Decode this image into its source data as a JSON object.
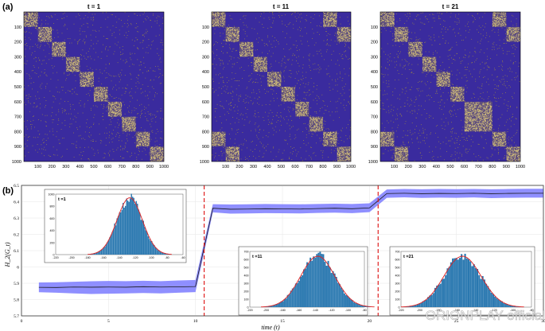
{
  "panel_a": {
    "label": "(a)",
    "colors": {
      "background": "#3a2b9e",
      "noise": "#a48f3e",
      "block": "#d8c47a",
      "border": "#000000"
    },
    "ticks": [
      "100",
      "200",
      "300",
      "400",
      "500",
      "600",
      "700",
      "800",
      "900",
      "1000"
    ],
    "matrices": [
      {
        "title": "t = 1",
        "blocks": [
          [
            0,
            100
          ],
          [
            100,
            200
          ],
          [
            200,
            300
          ],
          [
            300,
            400
          ],
          [
            400,
            500
          ],
          [
            500,
            600
          ],
          [
            600,
            700
          ],
          [
            700,
            800
          ],
          [
            800,
            900
          ],
          [
            900,
            1000
          ]
        ],
        "offdiag": []
      },
      {
        "title": "t = 11",
        "blocks": [
          [
            0,
            100
          ],
          [
            100,
            200
          ],
          [
            200,
            300
          ],
          [
            300,
            400
          ],
          [
            400,
            500
          ],
          [
            500,
            600
          ],
          [
            600,
            700
          ],
          [
            700,
            800
          ],
          [
            800,
            900
          ],
          [
            900,
            1000
          ]
        ],
        "offdiag": [
          [
            [
              0,
              100
            ],
            [
              800,
              900
            ]
          ],
          [
            [
              800,
              900
            ],
            [
              0,
              100
            ]
          ],
          [
            [
              100,
              200
            ],
            [
              900,
              1000
            ]
          ],
          [
            [
              900,
              1000
            ],
            [
              100,
              200
            ]
          ]
        ]
      },
      {
        "title": "t = 21",
        "blocks": [
          [
            0,
            100
          ],
          [
            100,
            200
          ],
          [
            200,
            300
          ],
          [
            300,
            400
          ],
          [
            400,
            500
          ],
          [
            500,
            600
          ],
          [
            600,
            800
          ],
          [
            800,
            900
          ],
          [
            900,
            1000
          ]
        ],
        "offdiag": [
          [
            [
              0,
              100
            ],
            [
              800,
              900
            ]
          ],
          [
            [
              800,
              900
            ],
            [
              0,
              100
            ]
          ],
          [
            [
              100,
              200
            ],
            [
              900,
              1000
            ]
          ],
          [
            [
              900,
              1000
            ],
            [
              100,
              200
            ]
          ]
        ]
      }
    ]
  },
  "chart_data": {
    "type": "line",
    "label": "(b)",
    "xlabel": "time (t)",
    "ylabel": "H_2(G_t)",
    "xlim": [
      0,
      30
    ],
    "ylim": [
      5.7,
      6.5
    ],
    "xticks": [
      "0",
      "5",
      "10",
      "15",
      "20",
      "25",
      "30"
    ],
    "yticks": [
      "5.7",
      "5.8",
      "5.9",
      "6",
      "6.1",
      "6.2",
      "6.3",
      "6.4",
      "6.5"
    ],
    "x": [
      1,
      2,
      3,
      4,
      5,
      6,
      7,
      8,
      9,
      10,
      11,
      12,
      13,
      14,
      15,
      16,
      17,
      18,
      19,
      20,
      21,
      22,
      23,
      24,
      25,
      26,
      27,
      28,
      29,
      30
    ],
    "mean": [
      5.875,
      5.874,
      5.877,
      5.876,
      5.877,
      5.876,
      5.879,
      5.877,
      5.878,
      5.88,
      6.36,
      6.354,
      6.355,
      6.357,
      6.356,
      6.355,
      6.358,
      6.36,
      6.357,
      6.362,
      6.45,
      6.452,
      6.449,
      6.451,
      6.45,
      6.452,
      6.449,
      6.451,
      6.452,
      6.452
    ],
    "upper": [
      5.905,
      5.906,
      5.909,
      5.912,
      5.914,
      5.913,
      5.915,
      5.913,
      5.917,
      5.92,
      6.385,
      6.383,
      6.384,
      6.386,
      6.385,
      6.384,
      6.386,
      6.388,
      6.386,
      6.39,
      6.475,
      6.478,
      6.476,
      6.478,
      6.477,
      6.478,
      6.476,
      6.478,
      6.479,
      6.479
    ],
    "lower": [
      5.845,
      5.842,
      5.838,
      5.834,
      5.836,
      5.838,
      5.84,
      5.838,
      5.842,
      5.846,
      6.335,
      6.327,
      6.328,
      6.33,
      6.329,
      6.328,
      6.331,
      6.333,
      6.33,
      6.336,
      6.424,
      6.427,
      6.423,
      6.425,
      6.424,
      6.426,
      6.422,
      6.424,
      6.425,
      6.425
    ],
    "change_points": [
      10.5,
      20.5
    ],
    "colors": {
      "band": "#7b7bff",
      "line": "#1a1a1a",
      "changepoint": "#e02020",
      "hist": "#2a78b0",
      "fit": "#e02020"
    },
    "insets": [
      {
        "title": "t =1",
        "xticks": [
          "-220",
          "-200",
          "-180",
          "-160",
          "-140",
          "-120",
          "-100",
          "-80",
          "-60"
        ],
        "xlim": [
          -220,
          -60
        ],
        "yticks": [
          "0",
          "200",
          "400",
          "600",
          "800",
          "1000"
        ],
        "ylim": [
          0,
          1000
        ],
        "mean": -127,
        "sd": 16,
        "peak": 940
      },
      {
        "title": "t =11",
        "xticks": [
          "-220",
          "-200",
          "-180",
          "-160",
          "-140",
          "-120",
          "-100",
          "-80"
        ],
        "xlim": [
          -220,
          -80
        ],
        "yticks": [
          "0",
          "100",
          "200",
          "300",
          "400",
          "500",
          "600",
          "700"
        ],
        "ylim": [
          0,
          700
        ],
        "mean": -137,
        "sd": 21,
        "peak": 640
      },
      {
        "title": "t =21",
        "xticks": [
          "-220",
          "-200",
          "-180",
          "-160",
          "-140",
          "-120",
          "-100",
          "-80"
        ],
        "xlim": [
          -220,
          -80
        ],
        "yticks": [
          "0",
          "100",
          "200",
          "300",
          "400",
          "500",
          "600",
          "700"
        ],
        "ylim": [
          0,
          700
        ],
        "mean": -154,
        "sd": 20,
        "peak": 640
      }
    ]
  },
  "watermark": "ORIONPLAY official"
}
